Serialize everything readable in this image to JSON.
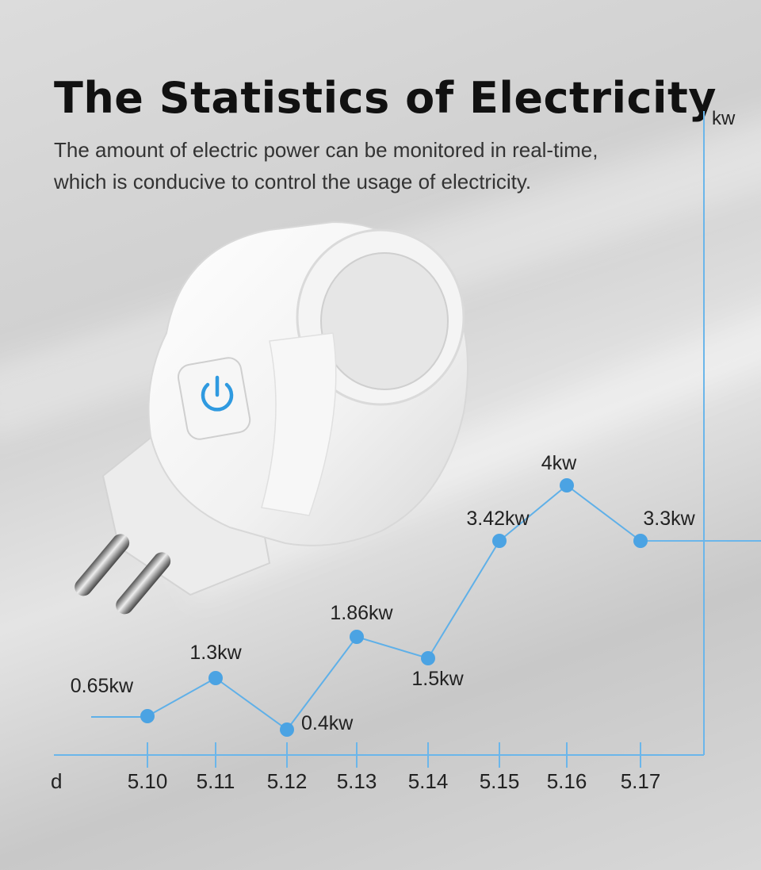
{
  "header": {
    "title": "The Statistics of Electricity",
    "subtitle_line1": "The amount of electric power can be monitored in real-time,",
    "subtitle_line2": "which is conducive to control the usage of electricity."
  },
  "colors": {
    "accent": "#4ba3e3",
    "line": "#5fb0e8",
    "axis": "#6bb6ea",
    "text": "#222222"
  },
  "chart_data": {
    "type": "line",
    "title": "The Statistics of Electricity",
    "xlabel": "d",
    "ylabel": "kw",
    "categories": [
      "5.10",
      "5.11",
      "5.12",
      "5.13",
      "5.14",
      "5.15",
      "5.16",
      "5.17"
    ],
    "values": [
      0.65,
      1.3,
      0.4,
      1.86,
      1.5,
      3.42,
      4,
      3.3
    ],
    "point_labels": [
      "0.65kw",
      "1.3kw",
      "0.4kw",
      "1.86kw",
      "1.5kw",
      "3.42kw",
      "4kw",
      "3.3kw"
    ],
    "ylim": [
      0,
      4.6
    ],
    "grid": false,
    "legend": "none"
  },
  "product": {
    "icon": "power-icon"
  }
}
